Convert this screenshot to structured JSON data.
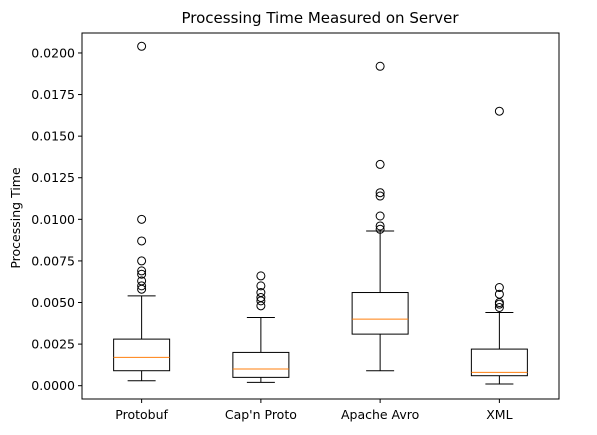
{
  "chart_data": {
    "type": "box",
    "title": "Processing Time Measured on Server",
    "xlabel": "",
    "ylabel": "Processing Time",
    "ylim": [
      -0.0008,
      0.0212
    ],
    "yticks": [
      0.0,
      0.0025,
      0.005,
      0.0075,
      0.01,
      0.0125,
      0.015,
      0.0175,
      0.02
    ],
    "ytick_labels": [
      "0.0000",
      "0.0025",
      "0.0050",
      "0.0075",
      "0.0100",
      "0.0125",
      "0.0150",
      "0.0175",
      "0.0200"
    ],
    "grid": false,
    "categories": [
      "Protobuf",
      "Cap'n Proto",
      "Apache Avro",
      "XML"
    ],
    "boxes": [
      {
        "category": "Protobuf",
        "whisker_low": 0.0003,
        "q1": 0.0009,
        "median": 0.0017,
        "q3": 0.0028,
        "whisker_high": 0.0054,
        "outliers": [
          0.0058,
          0.006,
          0.0063,
          0.0067,
          0.0069,
          0.0075,
          0.0087,
          0.01,
          0.0204
        ]
      },
      {
        "category": "Cap'n Proto",
        "whisker_low": 0.0002,
        "q1": 0.0005,
        "median": 0.001,
        "q3": 0.002,
        "whisker_high": 0.0041,
        "outliers": [
          0.0048,
          0.0051,
          0.0053,
          0.0056,
          0.006,
          0.0066
        ]
      },
      {
        "category": "Apache Avro",
        "whisker_low": 0.0009,
        "q1": 0.0031,
        "median": 0.004,
        "q3": 0.0056,
        "whisker_high": 0.0093,
        "outliers": [
          0.0094,
          0.0096,
          0.0102,
          0.0114,
          0.0116,
          0.0133,
          0.0192
        ]
      },
      {
        "category": "XML",
        "whisker_low": 0.0001,
        "q1": 0.0006,
        "median": 0.0008,
        "q3": 0.0022,
        "whisker_high": 0.0044,
        "outliers": [
          0.0047,
          0.0049,
          0.005,
          0.0055,
          0.0059,
          0.0165
        ]
      }
    ],
    "colors": {
      "box": "#000000",
      "median": "#ff7f0e",
      "whisker": "#000000",
      "outlier": "#000000",
      "axes": "#000000"
    }
  }
}
